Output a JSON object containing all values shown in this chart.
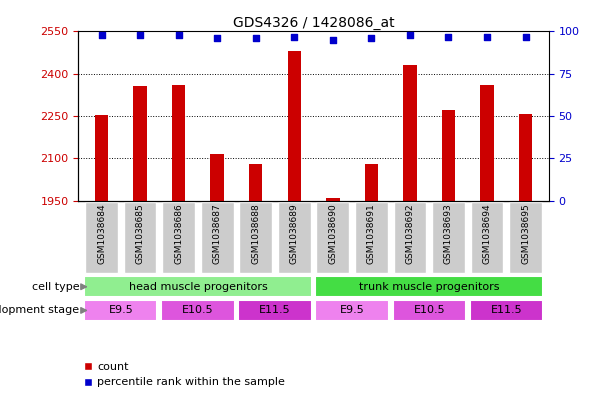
{
  "title": "GDS4326 / 1428086_at",
  "samples": [
    "GSM1038684",
    "GSM1038685",
    "GSM1038686",
    "GSM1038687",
    "GSM1038688",
    "GSM1038689",
    "GSM1038690",
    "GSM1038691",
    "GSM1038692",
    "GSM1038693",
    "GSM1038694",
    "GSM1038695"
  ],
  "counts": [
    2255,
    2355,
    2360,
    2115,
    2080,
    2480,
    1960,
    2080,
    2430,
    2270,
    2360,
    2258
  ],
  "percentiles": [
    98,
    98,
    98,
    96,
    96,
    97,
    95,
    96,
    98,
    97,
    97,
    97
  ],
  "ylim_left": [
    1950,
    2550
  ],
  "ylim_right": [
    0,
    100
  ],
  "yticks_left": [
    1950,
    2100,
    2250,
    2400,
    2550
  ],
  "yticks_right": [
    0,
    25,
    50,
    75,
    100
  ],
  "bar_color": "#cc0000",
  "dot_color": "#0000cc",
  "background_color": "#ffffff",
  "tick_label_bg": "#cccccc",
  "cell_type_groups": [
    {
      "label": "head muscle progenitors",
      "start": 0,
      "end": 5,
      "color": "#90ee90"
    },
    {
      "label": "trunk muscle progenitors",
      "start": 6,
      "end": 11,
      "color": "#44dd44"
    }
  ],
  "dev_stage_groups": [
    {
      "label": "E9.5",
      "start": 0,
      "end": 1,
      "color": "#ee82ee"
    },
    {
      "label": "E10.5",
      "start": 2,
      "end": 3,
      "color": "#dd55dd"
    },
    {
      "label": "E11.5",
      "start": 4,
      "end": 5,
      "color": "#cc33cc"
    },
    {
      "label": "E9.5",
      "start": 6,
      "end": 7,
      "color": "#ee82ee"
    },
    {
      "label": "E10.5",
      "start": 8,
      "end": 9,
      "color": "#dd55dd"
    },
    {
      "label": "E11.5",
      "start": 10,
      "end": 11,
      "color": "#cc33cc"
    }
  ],
  "legend_count_label": "count",
  "legend_pct_label": "percentile rank within the sample",
  "cell_type_label": "cell type",
  "dev_stage_label": "development stage",
  "bar_width": 0.35
}
